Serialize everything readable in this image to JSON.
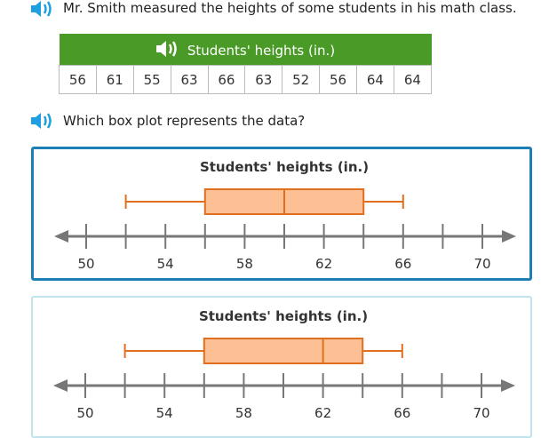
{
  "question": {
    "intro": "Mr. Smith measured the heights of some students in his math class.",
    "prompt": "Which box plot represents the data?"
  },
  "table": {
    "title": "Students' heights (in.)",
    "values": [
      "56",
      "61",
      "55",
      "63",
      "66",
      "63",
      "52",
      "56",
      "64",
      "64"
    ]
  },
  "colors": {
    "accent": "#1d7fb5",
    "header": "#4a9a28",
    "box_fill": "#fdc094",
    "box_stroke": "#e07020",
    "axis": "#777777"
  },
  "choices": [
    {
      "title": "Students' heights (in.)",
      "min": 52,
      "q1": 56,
      "median": 60,
      "q3": 64,
      "max": 66,
      "selected": true
    },
    {
      "title": "Students' heights (in.)",
      "min": 52,
      "q1": 56,
      "median": 62,
      "q3": 64,
      "max": 66,
      "selected": false
    }
  ],
  "axis": {
    "min": 50,
    "max": 70,
    "tick_step": 2,
    "labels": [
      "50",
      "54",
      "58",
      "62",
      "66",
      "70"
    ]
  }
}
